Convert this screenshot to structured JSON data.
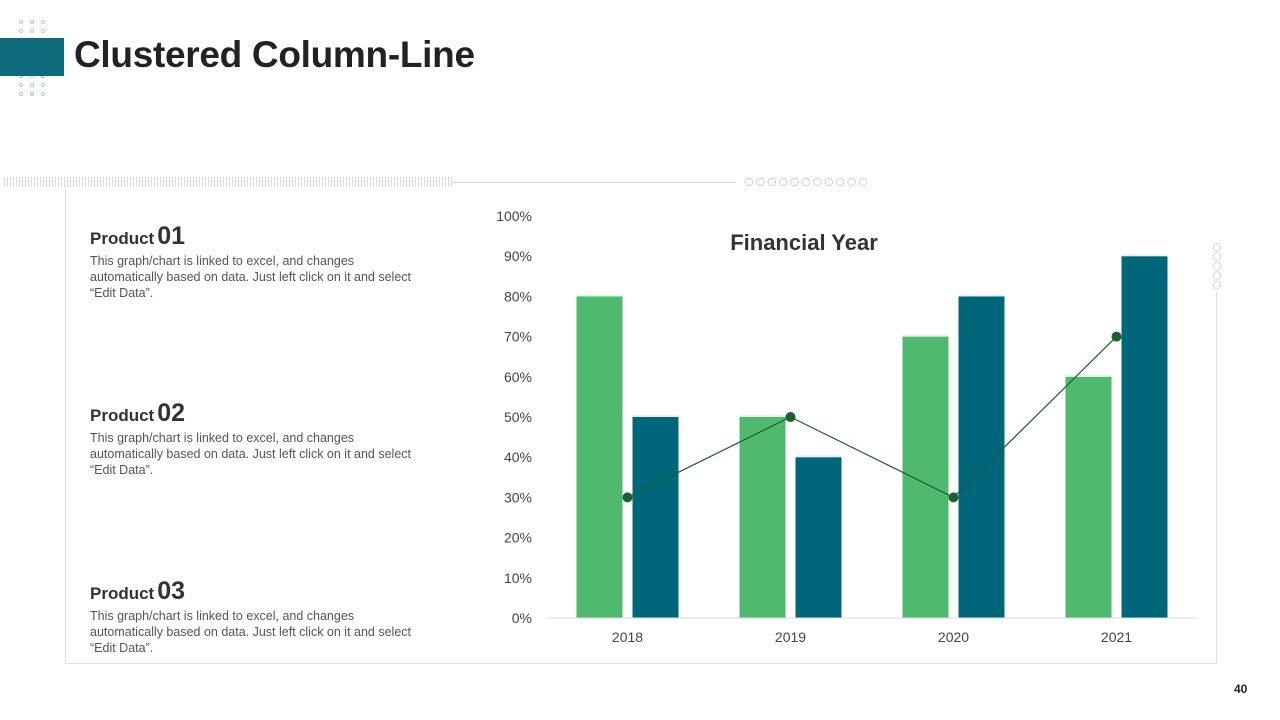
{
  "slide": {
    "title": "Clustered Column-Line",
    "page_number": "40"
  },
  "products": [
    {
      "label": "Product",
      "number": "01",
      "description": "This graph/chart is linked to excel, and changes automatically based on data. Just left click on it and select “Edit Data”."
    },
    {
      "label": "Product",
      "number": "02",
      "description": "This graph/chart is linked to excel, and changes automatically based on data. Just left click on it and select “Edit Data”."
    },
    {
      "label": "Product",
      "number": "03",
      "description": "This graph/chart is linked to excel, and changes automatically based on data. Just left click on it and select “Edit Data”."
    }
  ],
  "colors": {
    "accent": "#0e6b7b",
    "series1": "#4fba6f",
    "series2": "#00677a",
    "line": "#1f5e2e"
  },
  "chart_data": {
    "type": "bar",
    "title": "Financial Year",
    "categories": [
      "2018",
      "2019",
      "2020",
      "2021"
    ],
    "series": [
      {
        "type": "bar",
        "values": [
          80,
          50,
          70,
          60
        ],
        "color": "#4fba6f"
      },
      {
        "type": "bar",
        "values": [
          50,
          40,
          80,
          90
        ],
        "color": "#00677a"
      },
      {
        "type": "line",
        "values": [
          30,
          50,
          30,
          70
        ],
        "color": "#1f5e2e"
      }
    ],
    "ylim": [
      0,
      100
    ],
    "yticks": [
      0,
      10,
      20,
      30,
      40,
      50,
      60,
      70,
      80,
      90,
      100
    ],
    "ytick_format": "percent",
    "xlabel": "",
    "ylabel": "",
    "grid": false,
    "legend": "none"
  }
}
